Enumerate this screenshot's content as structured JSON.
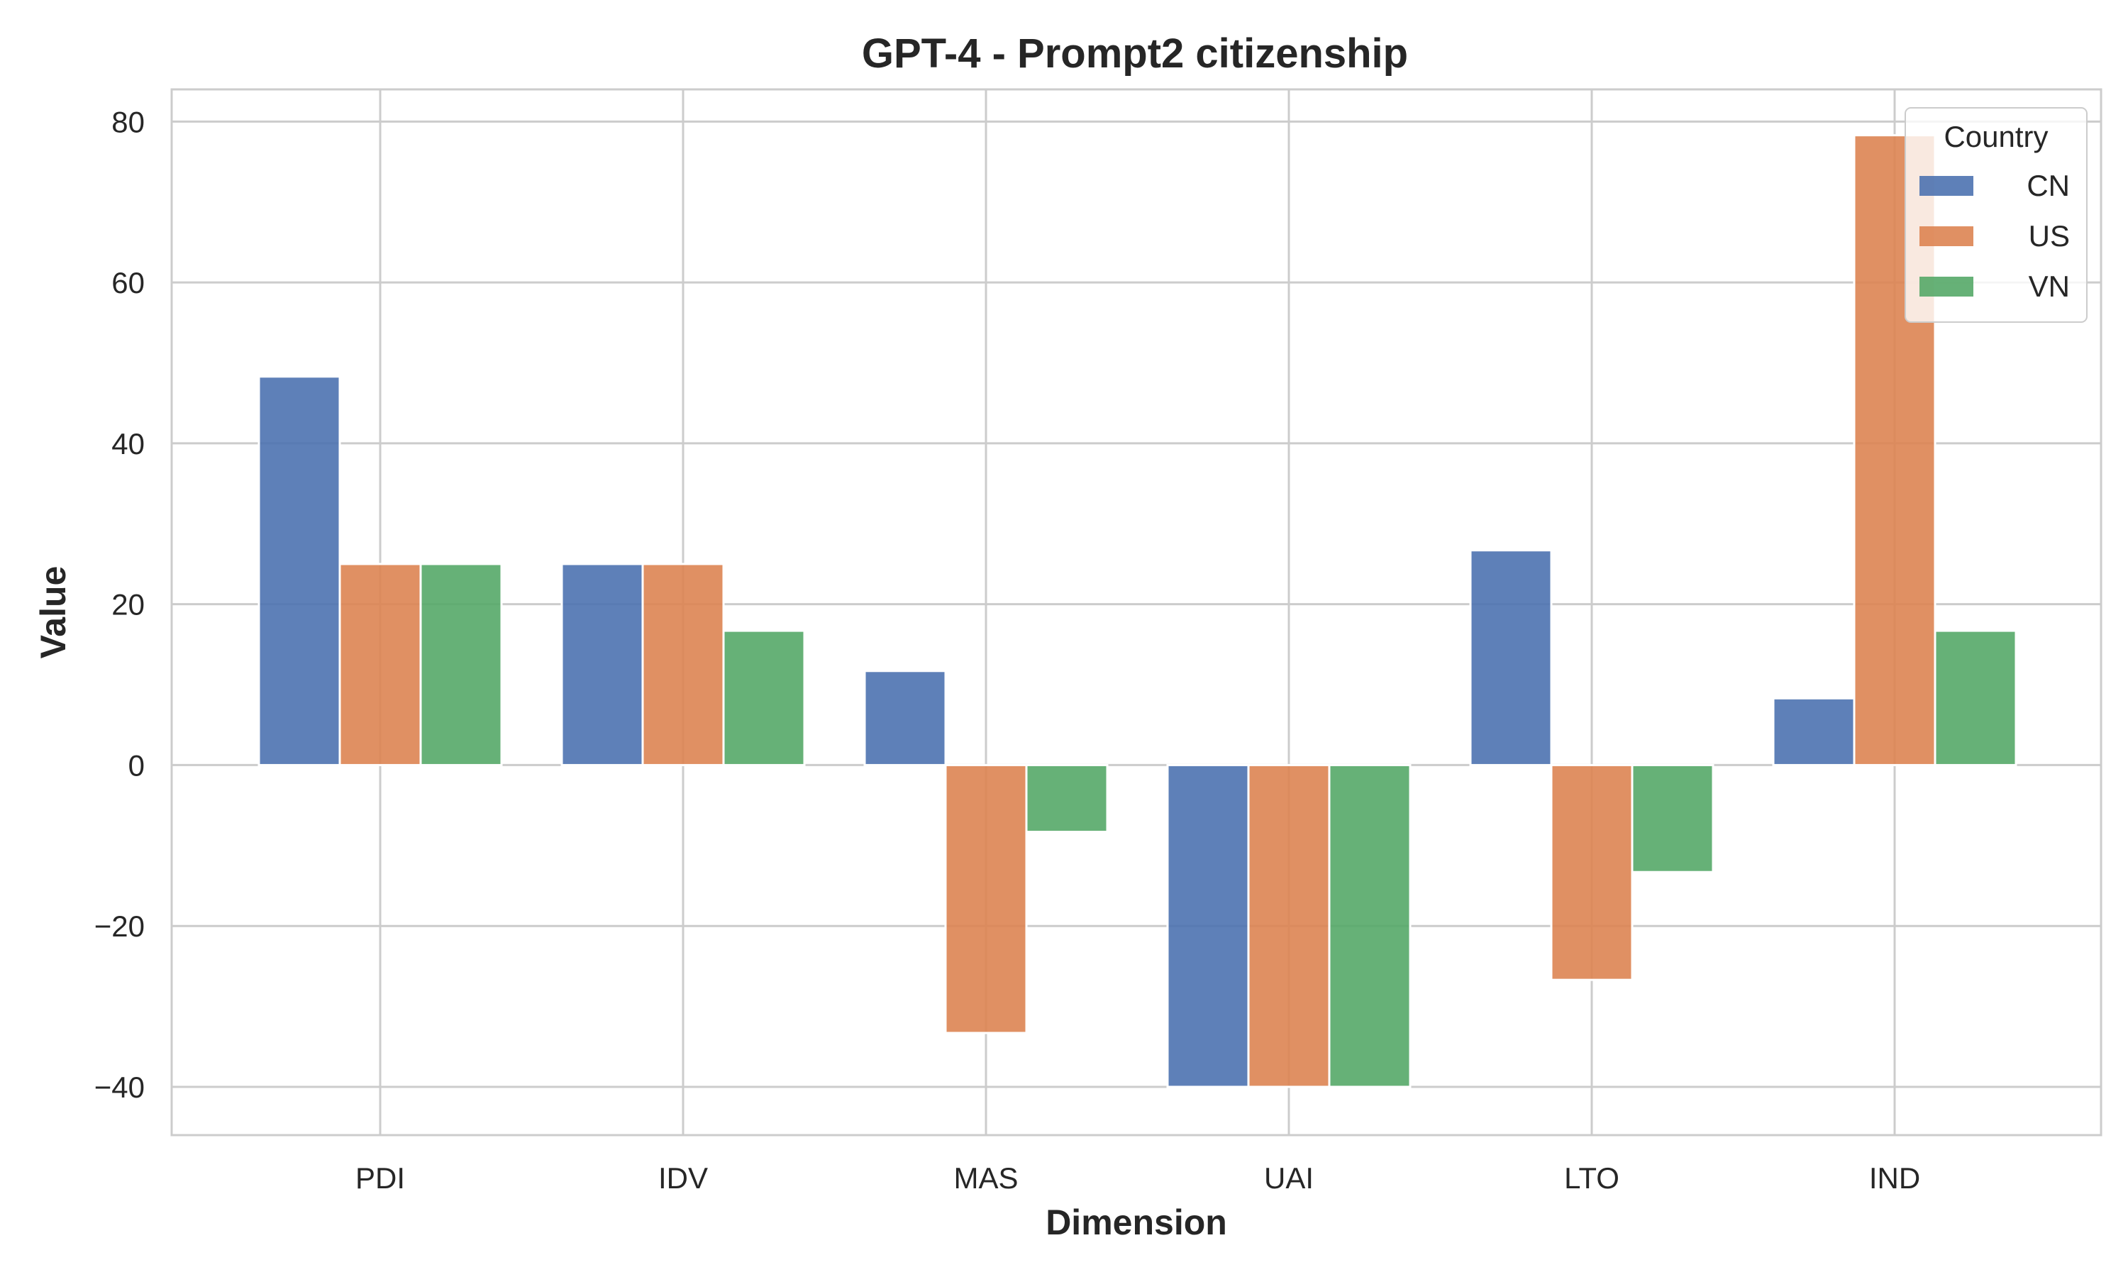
{
  "chart_data": {
    "type": "bar",
    "title": "GPT-4 - Prompt2 citizenship",
    "xlabel": "Dimension",
    "ylabel": "Value",
    "categories": [
      "PDI",
      "IDV",
      "MAS",
      "UAI",
      "LTO",
      "IND"
    ],
    "series": [
      {
        "name": "CN",
        "color": "#4c72b0",
        "values": [
          48.3,
          25.0,
          11.7,
          -40.0,
          26.7,
          8.3
        ]
      },
      {
        "name": "US",
        "color": "#dd8452",
        "values": [
          25.0,
          25.0,
          -33.3,
          -40.0,
          -26.7,
          78.3
        ]
      },
      {
        "name": "VN",
        "color": "#55a868",
        "values": [
          25.0,
          16.7,
          -8.3,
          -40.0,
          -13.3,
          16.7
        ]
      }
    ],
    "ylim": [
      -46,
      84
    ],
    "yticks": [
      80,
      60,
      40,
      20,
      0,
      -20,
      -40
    ],
    "ytick_labels": [
      "80",
      "60",
      "40",
      "20",
      "0",
      "−20",
      "−40"
    ],
    "grid": true,
    "legend": {
      "title": "Country",
      "placement": "top-right"
    }
  }
}
